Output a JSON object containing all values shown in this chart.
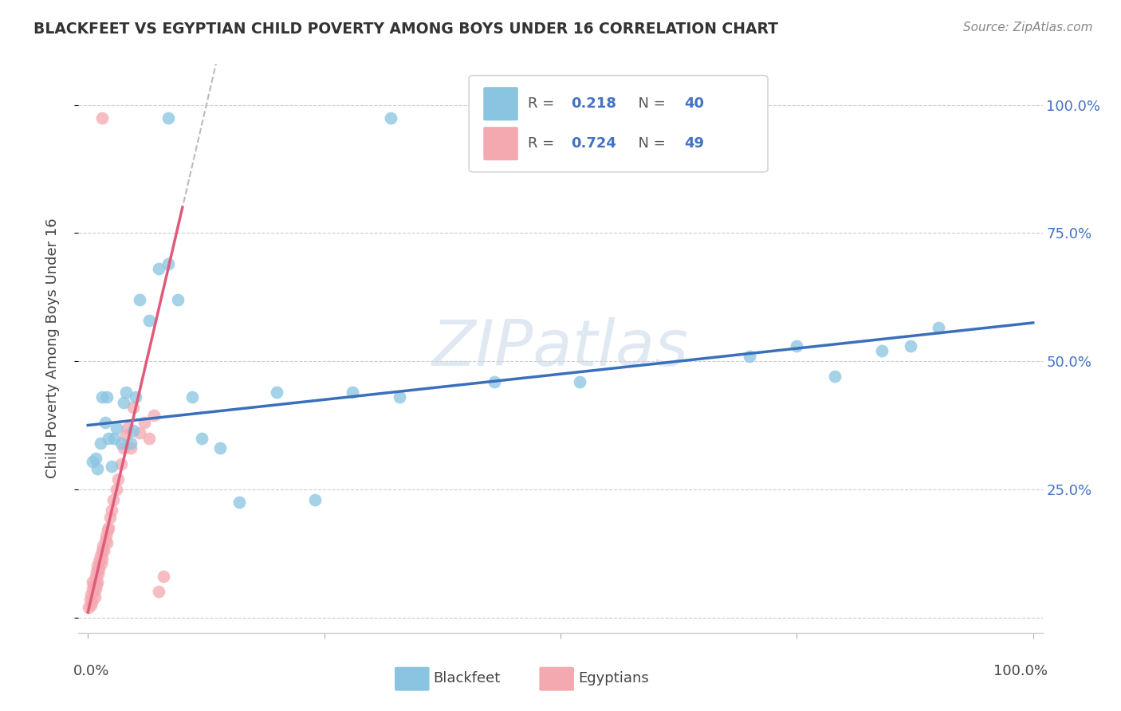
{
  "title": "BLACKFEET VS EGYPTIAN CHILD POVERTY AMONG BOYS UNDER 16 CORRELATION CHART",
  "source": "Source: ZipAtlas.com",
  "ylabel": "Child Poverty Among Boys Under 16",
  "legend1_label": "Blackfeet",
  "legend2_label": "Egyptians",
  "R_blackfeet": 0.218,
  "N_blackfeet": 40,
  "R_egyptians": 0.724,
  "N_egyptians": 49,
  "blackfeet_color": "#89c4e1",
  "egyptians_color": "#f4a9b0",
  "trendline_blackfeet_color": "#3a6fba",
  "trendline_egyptians_color": "#e05a7a",
  "grid_color": "#cccccc",
  "blackfeet_x": [
    0.005,
    0.008,
    0.01,
    0.013,
    0.015,
    0.018,
    0.02,
    0.022,
    0.025,
    0.028,
    0.03,
    0.035,
    0.038,
    0.04,
    0.045,
    0.048,
    0.05,
    0.055,
    0.065,
    0.075,
    0.085,
    0.095,
    0.11,
    0.12,
    0.14,
    0.16,
    0.2,
    0.24,
    0.28,
    0.33,
    0.43,
    0.52,
    0.7,
    0.75,
    0.79,
    0.84,
    0.87,
    0.9,
    0.085,
    0.32
  ],
  "blackfeet_y": [
    0.305,
    0.31,
    0.29,
    0.34,
    0.43,
    0.38,
    0.43,
    0.35,
    0.295,
    0.35,
    0.37,
    0.34,
    0.42,
    0.44,
    0.34,
    0.365,
    0.43,
    0.62,
    0.58,
    0.68,
    0.69,
    0.62,
    0.43,
    0.35,
    0.33,
    0.225,
    0.44,
    0.23,
    0.44,
    0.43,
    0.46,
    0.46,
    0.51,
    0.53,
    0.47,
    0.52,
    0.53,
    0.565,
    0.975,
    0.975
  ],
  "egyptians_x": [
    0.001,
    0.002,
    0.003,
    0.003,
    0.004,
    0.005,
    0.005,
    0.006,
    0.006,
    0.007,
    0.007,
    0.008,
    0.008,
    0.009,
    0.009,
    0.01,
    0.01,
    0.011,
    0.012,
    0.012,
    0.013,
    0.014,
    0.015,
    0.015,
    0.016,
    0.017,
    0.018,
    0.019,
    0.02,
    0.021,
    0.022,
    0.023,
    0.025,
    0.027,
    0.03,
    0.032,
    0.035,
    0.038,
    0.04,
    0.042,
    0.045,
    0.048,
    0.055,
    0.06,
    0.065,
    0.07,
    0.075,
    0.08,
    0.015
  ],
  "egyptians_y": [
    0.02,
    0.035,
    0.025,
    0.045,
    0.03,
    0.055,
    0.07,
    0.05,
    0.065,
    0.06,
    0.04,
    0.055,
    0.08,
    0.065,
    0.09,
    0.07,
    0.1,
    0.085,
    0.095,
    0.11,
    0.12,
    0.105,
    0.13,
    0.115,
    0.14,
    0.13,
    0.15,
    0.16,
    0.145,
    0.17,
    0.175,
    0.195,
    0.21,
    0.23,
    0.25,
    0.27,
    0.3,
    0.33,
    0.355,
    0.37,
    0.33,
    0.41,
    0.36,
    0.38,
    0.35,
    0.395,
    0.05,
    0.08,
    0.975
  ],
  "trendline_blue_x0": 0.0,
  "trendline_blue_y0": 0.375,
  "trendline_blue_x1": 1.0,
  "trendline_blue_y1": 0.575,
  "trendline_pink_x0": 0.0,
  "trendline_pink_y0": 0.01,
  "trendline_pink_x1": 0.1,
  "trendline_pink_y1": 0.8,
  "trendline_pink_solid_end": 0.1,
  "trendline_dash_x0": 0.08,
  "trendline_dash_x1": 0.3,
  "xlim_min": -0.01,
  "xlim_max": 1.01,
  "ylim_min": -0.03,
  "ylim_max": 1.08
}
